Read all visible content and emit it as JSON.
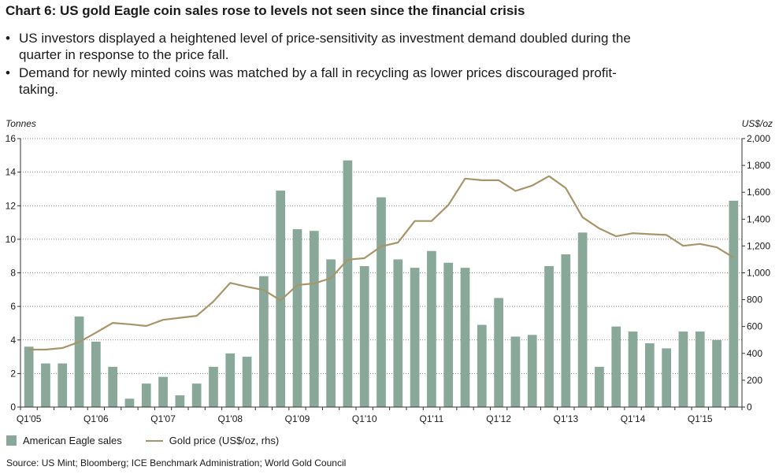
{
  "title": "Chart 6: US gold Eagle coin sales rose to levels not seen since the financial crisis",
  "bullets": [
    "US investors displayed a heightened level of price-sensitivity as investment demand doubled during the quarter in response to the price fall.",
    "Demand for newly minted coins was matched by a fall in recycling as lower prices discouraged profit-taking."
  ],
  "bullet_glyph": "•",
  "source": "Source: US Mint; Bloomberg; ICE Benchmark Administration; World Gold Council",
  "legend": {
    "bars": "American Eagle sales",
    "line": "Gold price (US$/oz, rhs)"
  },
  "colors": {
    "bars": "#8aa89a",
    "line": "#a8946a",
    "axis": "#333333",
    "grid": "#666666"
  },
  "chart_data": {
    "type": "bar",
    "title": "Chart 6: US gold Eagle coin sales rose to levels not seen since the financial crisis",
    "ylabel": "Tonnes",
    "y2label": "US$/oz",
    "ylim": [
      0,
      16
    ],
    "y2lim": [
      0,
      2000
    ],
    "yticks": [
      0,
      2,
      4,
      6,
      8,
      10,
      12,
      14,
      16
    ],
    "y2ticks": [
      0,
      200,
      400,
      600,
      800,
      1000,
      1200,
      1400,
      1600,
      1800,
      2000
    ],
    "y2tick_labels": [
      "0",
      "200",
      "400",
      "600",
      "800",
      "1,000",
      "1,200",
      "1,400",
      "1,600",
      "1,800",
      "2,000"
    ],
    "grid": true,
    "legend_position": "bottom-left",
    "x_tick_labels": [
      {
        "index": 0,
        "label": "Q1'05"
      },
      {
        "index": 4,
        "label": "Q1'06"
      },
      {
        "index": 8,
        "label": "Q1'07"
      },
      {
        "index": 12,
        "label": "Q1'08"
      },
      {
        "index": 16,
        "label": "Q1'09"
      },
      {
        "index": 20,
        "label": "Q1'10"
      },
      {
        "index": 24,
        "label": "Q1'11"
      },
      {
        "index": 28,
        "label": "Q1'12"
      },
      {
        "index": 32,
        "label": "Q1'13"
      },
      {
        "index": 36,
        "label": "Q1'14"
      },
      {
        "index": 40,
        "label": "Q1'15"
      }
    ],
    "series": [
      {
        "name": "American Eagle sales",
        "type": "bar",
        "axis": "left",
        "values": [
          3.6,
          2.6,
          2.6,
          5.4,
          3.9,
          2.4,
          0.5,
          1.4,
          1.8,
          0.7,
          1.4,
          2.4,
          3.2,
          3.0,
          7.8,
          12.9,
          10.6,
          10.5,
          8.8,
          14.7,
          8.4,
          12.5,
          8.8,
          8.3,
          9.3,
          8.6,
          8.3,
          4.9,
          6.5,
          4.2,
          4.3,
          8.4,
          9.1,
          10.4,
          2.4,
          4.8,
          4.5,
          3.8,
          3.5,
          4.5,
          4.5,
          4.0,
          12.3
        ]
      },
      {
        "name": "Gold price (US$/oz, rhs)",
        "type": "line",
        "axis": "right",
        "values": [
          428,
          428,
          440,
          485,
          555,
          627,
          617,
          604,
          650,
          665,
          680,
          787,
          925,
          896,
          872,
          795,
          909,
          921,
          960,
          1098,
          1109,
          1197,
          1226,
          1386,
          1386,
          1505,
          1702,
          1690,
          1690,
          1610,
          1650,
          1720,
          1631,
          1414,
          1330,
          1272,
          1295,
          1288,
          1282,
          1201,
          1215,
          1190,
          1114
        ]
      }
    ]
  }
}
